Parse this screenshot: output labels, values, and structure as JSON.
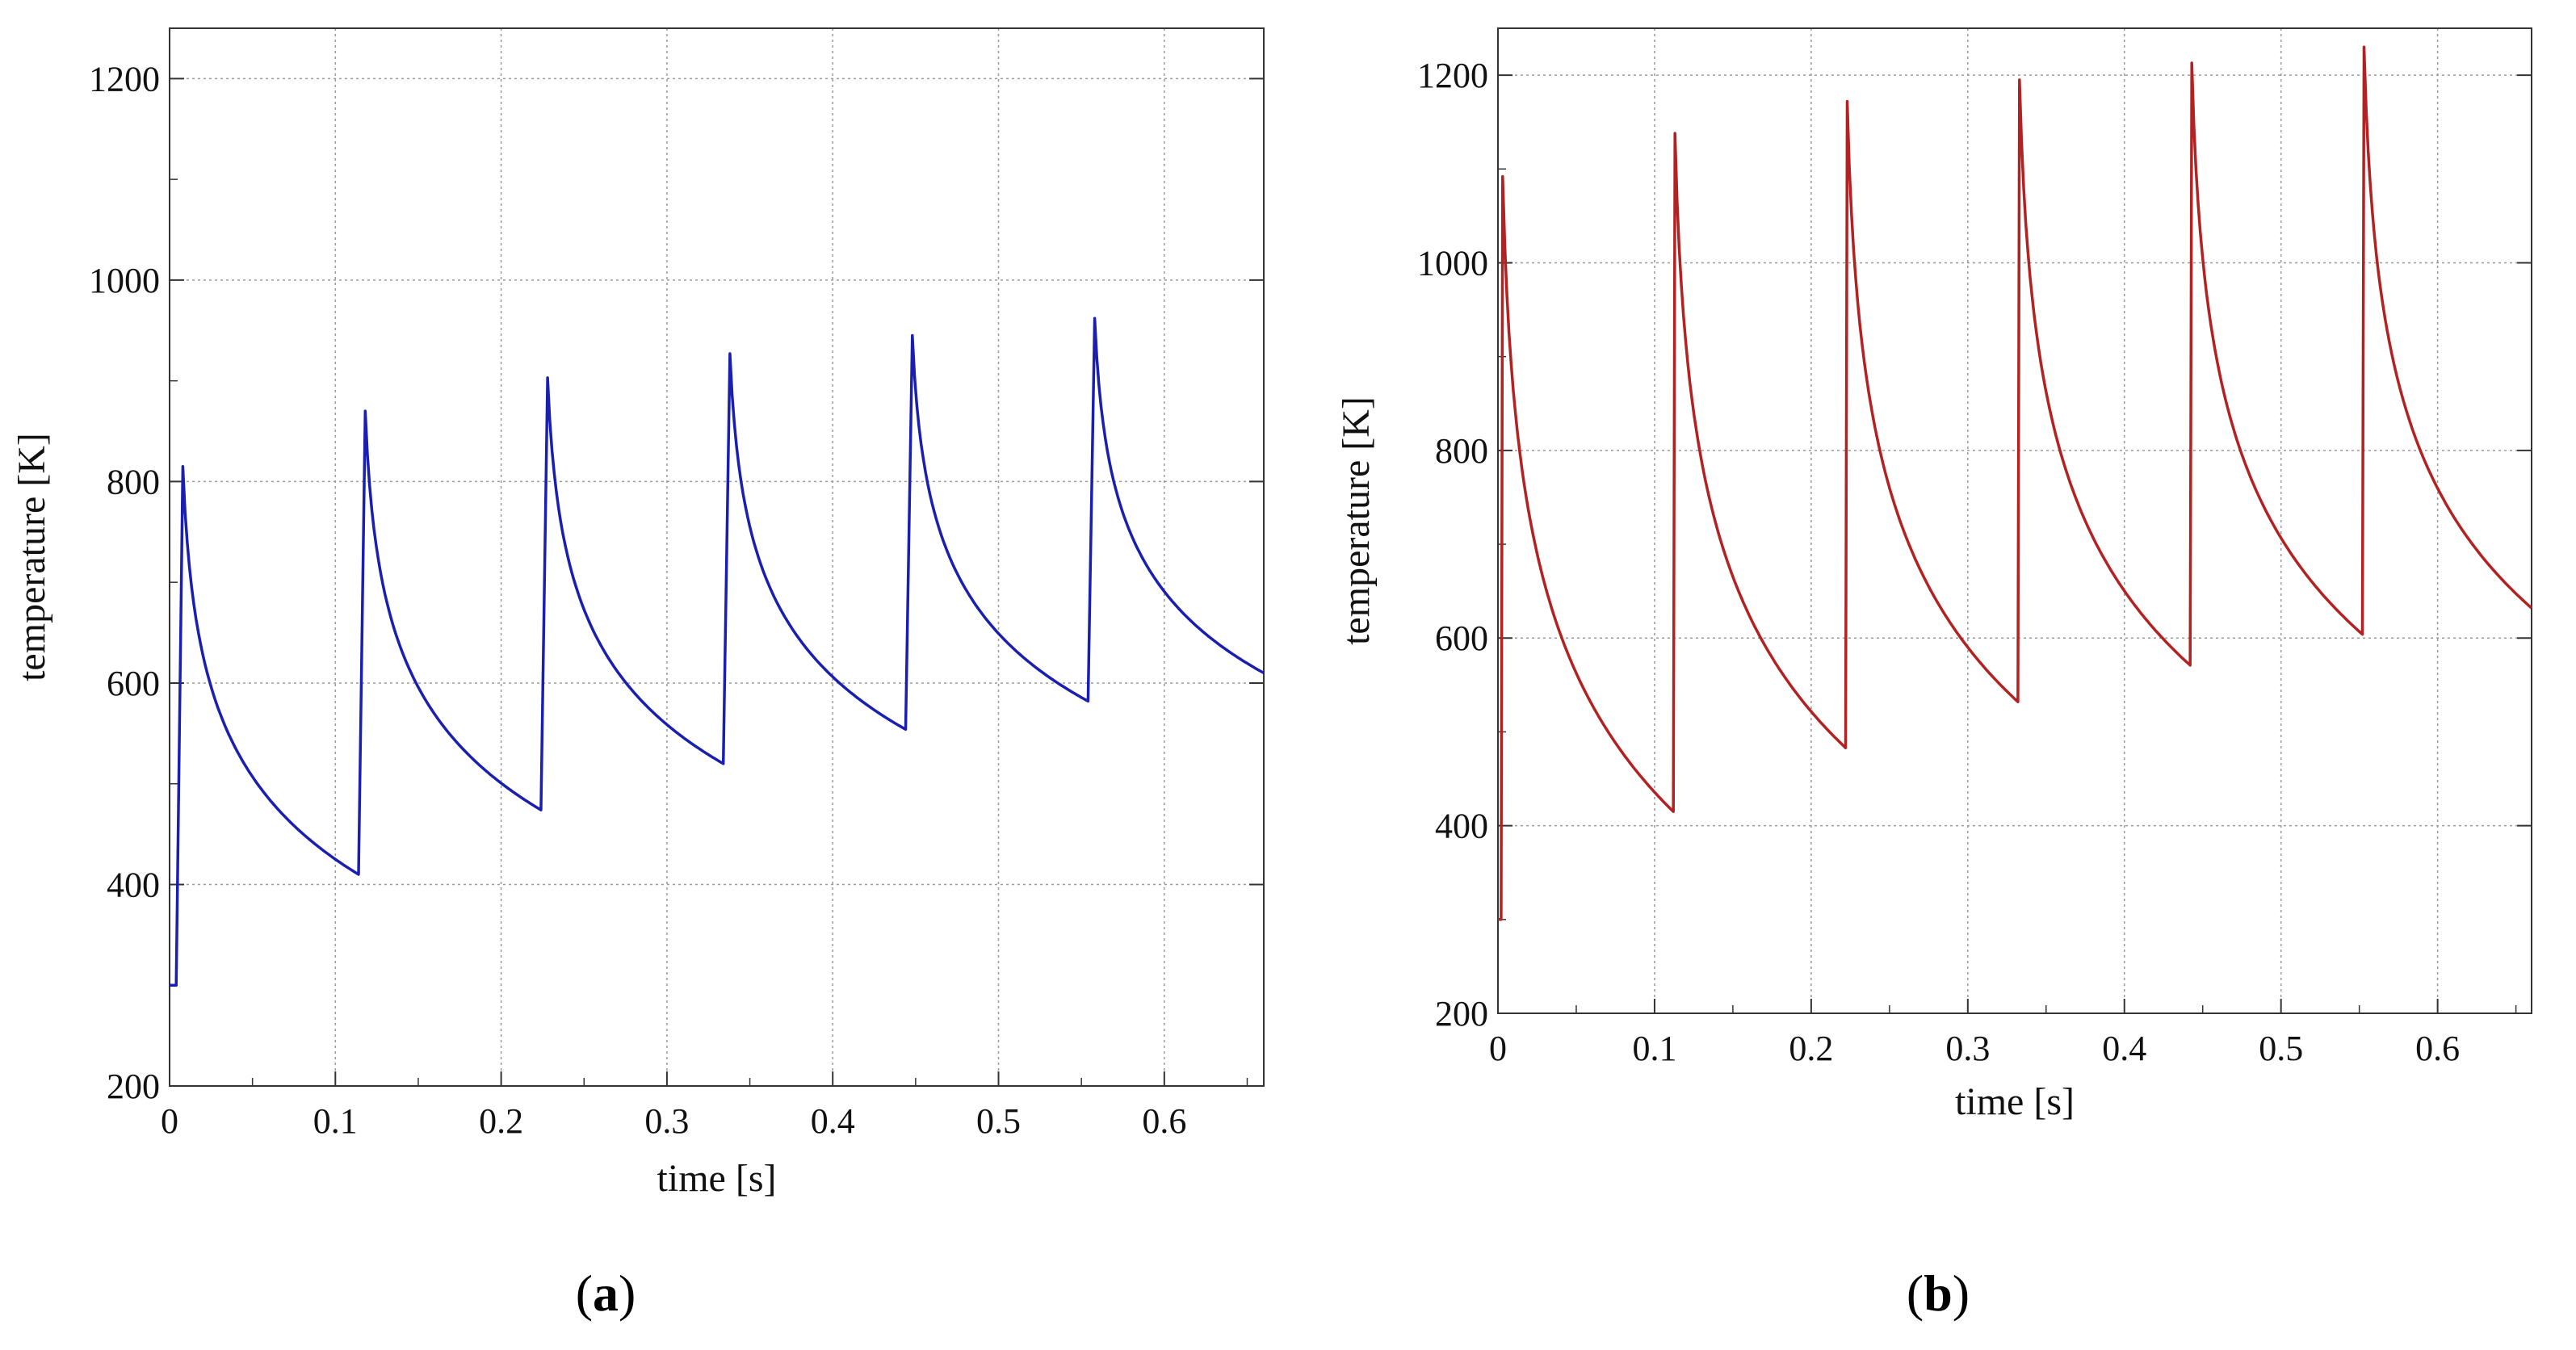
{
  "chart_data": [
    {
      "panel": "a",
      "type": "line",
      "caption": "a",
      "xlabel": "time [s]",
      "ylabel": "temperature [K]",
      "xlim": [
        0,
        0.66
      ],
      "ylim": [
        200,
        1250
      ],
      "xticks": [
        0,
        0.1,
        0.2,
        0.3,
        0.4,
        0.5,
        0.6
      ],
      "xtick_labels": [
        "0",
        "0.1",
        "0.2",
        "0.3",
        "0.4",
        "0.5",
        "0.6"
      ],
      "yticks": [
        200,
        400,
        600,
        800,
        1000,
        1200
      ],
      "ytick_labels": [
        "200",
        "400",
        "600",
        "800",
        "1000",
        "1200"
      ],
      "grid": true,
      "color": "#1a1fb0",
      "series": [
        {
          "name": "temperature",
          "initial_temperature": 300,
          "pulse_times": [
            0.004,
            0.114,
            0.224,
            0.334,
            0.444,
            0.554
          ],
          "peak_times": [
            0.008,
            0.118,
            0.228,
            0.338,
            0.448,
            0.558
          ],
          "peak_values": [
            815,
            870,
            903,
            927,
            945,
            962
          ],
          "trough_times": [
            0.114,
            0.224,
            0.334,
            0.444,
            0.554,
            0.66
          ],
          "trough_values": [
            410,
            474,
            520,
            554,
            582,
            610
          ]
        }
      ]
    },
    {
      "panel": "b",
      "type": "line",
      "caption": "b",
      "xlabel": "time [s]",
      "ylabel": "temperature [K]",
      "xlim": [
        0,
        0.66
      ],
      "ylim": [
        200,
        1250
      ],
      "xticks": [
        0,
        0.1,
        0.2,
        0.3,
        0.4,
        0.5,
        0.6
      ],
      "xtick_labels": [
        "0",
        "0.1",
        "0.2",
        "0.3",
        "0.4",
        "0.5",
        "0.6"
      ],
      "yticks": [
        200,
        400,
        600,
        800,
        1000,
        1200
      ],
      "ytick_labels": [
        "200",
        "400",
        "600",
        "800",
        "1000",
        "1200"
      ],
      "grid": true,
      "color": "#b22222",
      "series": [
        {
          "name": "temperature",
          "initial_temperature": 300,
          "pulse_times": [
            0.002,
            0.112,
            0.222,
            0.332,
            0.442,
            0.552
          ],
          "peak_times": [
            0.003,
            0.113,
            0.223,
            0.333,
            0.443,
            0.553
          ],
          "peak_values": [
            1092,
            1138,
            1172,
            1195,
            1213,
            1230
          ],
          "trough_times": [
            0.112,
            0.222,
            0.332,
            0.442,
            0.552,
            0.66
          ],
          "trough_values": [
            415,
            483,
            532,
            571,
            604,
            632
          ]
        }
      ]
    }
  ]
}
